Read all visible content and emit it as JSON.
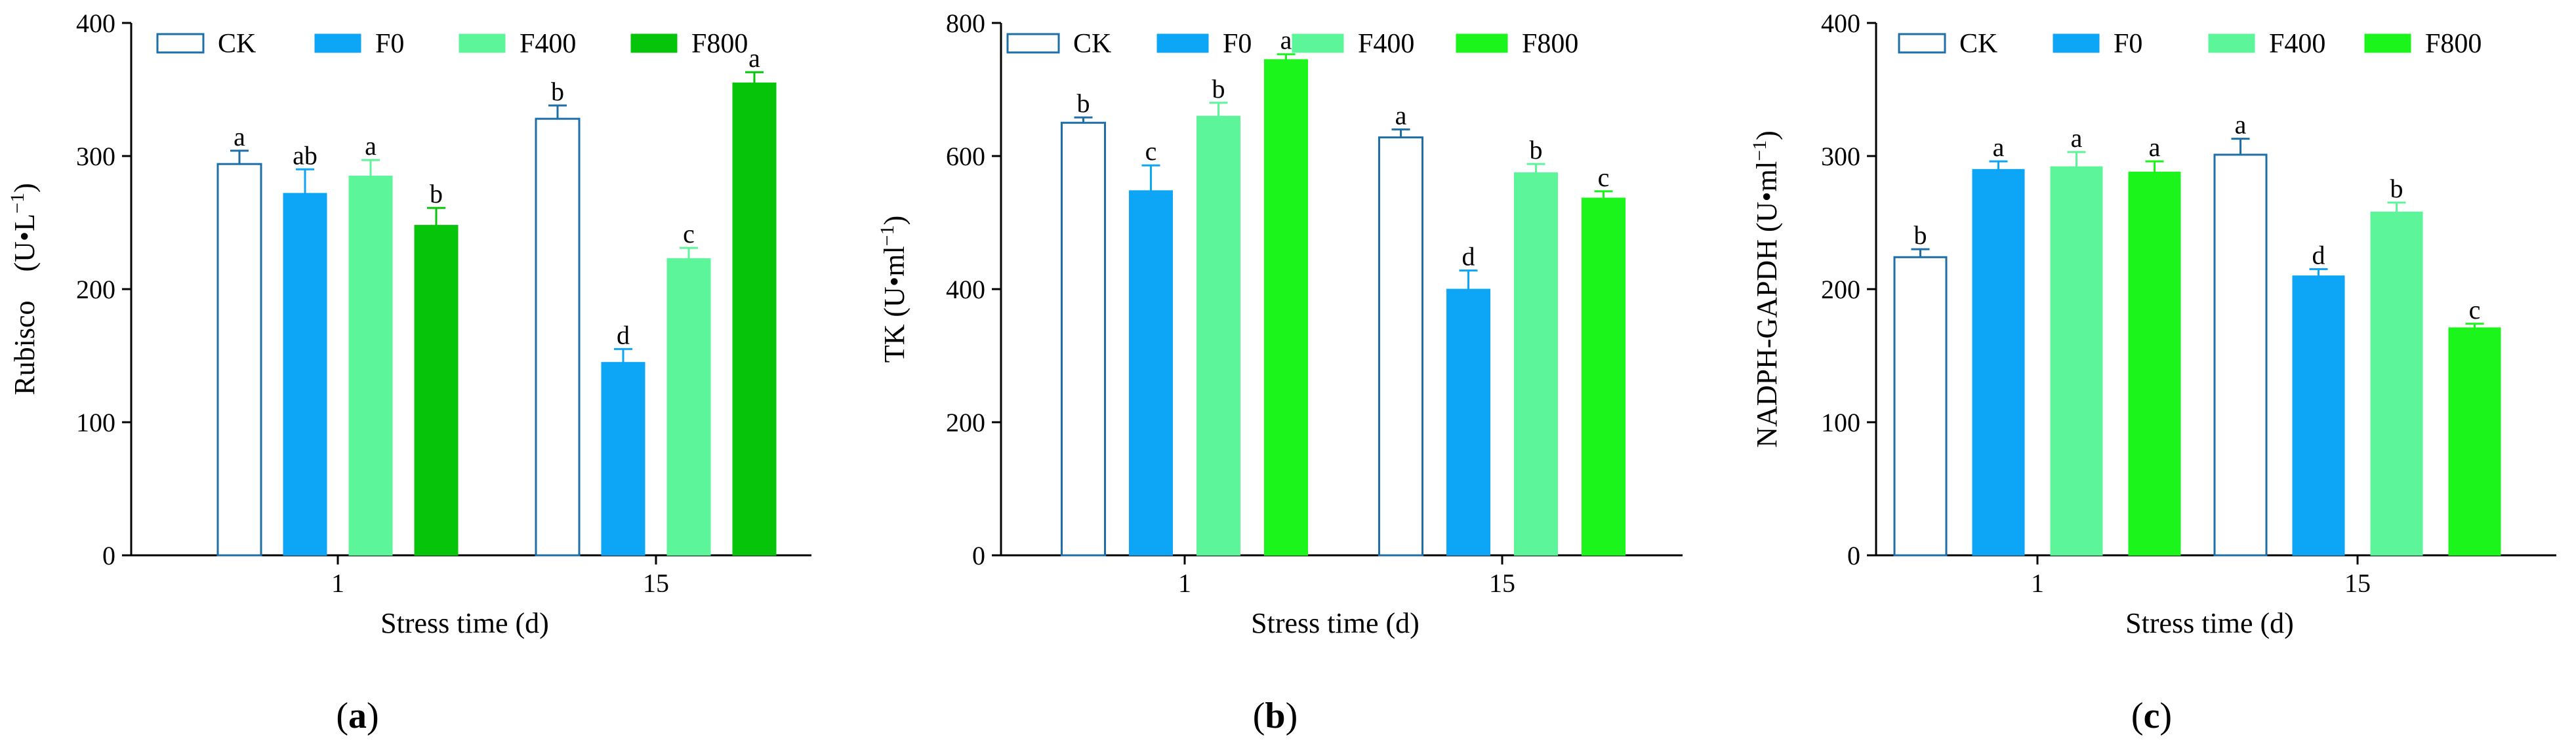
{
  "colors": {
    "CK": "#ffffff",
    "CK_stroke": "#1e6fa8",
    "F0": "#0da5f5",
    "F400": "#5df59a",
    "F800_a": "#06c40a",
    "F800": "#1bf51b",
    "axis": "#000000"
  },
  "chart_data": [
    {
      "type": "bar",
      "panel_label": "(a)",
      "ylabel_main": "Rubisco　(U•L",
      "ylabel_sup": "−1",
      "ylabel_end": ")",
      "xlabel": "Stress time (d)",
      "categories": [
        "1",
        "15"
      ],
      "ylim": [
        0,
        400
      ],
      "yticks": [
        "0",
        "100",
        "200",
        "300",
        "400"
      ],
      "series": [
        {
          "name": "CK",
          "values": [
            294,
            328
          ],
          "errors": [
            10,
            10
          ],
          "letters": [
            "a",
            "b"
          ]
        },
        {
          "name": "F0",
          "values": [
            272,
            145
          ],
          "errors": [
            18,
            10
          ],
          "letters": [
            "ab",
            "d"
          ]
        },
        {
          "name": "F400",
          "values": [
            285,
            223
          ],
          "errors": [
            12,
            8
          ],
          "letters": [
            "a",
            "c"
          ]
        },
        {
          "name": "F800",
          "values": [
            248,
            355
          ],
          "errors": [
            13,
            8
          ],
          "letters": [
            "b",
            "a"
          ]
        }
      ]
    },
    {
      "type": "bar",
      "panel_label": "(b)",
      "ylabel_main": "TK (U•ml",
      "ylabel_sup": "−1",
      "ylabel_end": ")",
      "xlabel": "Stress time (d)",
      "categories": [
        "1",
        "15"
      ],
      "ylim": [
        0,
        800
      ],
      "yticks": [
        "0",
        "200",
        "400",
        "600",
        "800"
      ],
      "series": [
        {
          "name": "CK",
          "values": [
            650,
            628
          ],
          "errors": [
            8,
            12
          ],
          "letters": [
            "b",
            "a"
          ]
        },
        {
          "name": "F0",
          "values": [
            548,
            400
          ],
          "errors": [
            38,
            28
          ],
          "letters": [
            "c",
            "d"
          ]
        },
        {
          "name": "F400",
          "values": [
            660,
            575
          ],
          "errors": [
            20,
            13
          ],
          "letters": [
            "b",
            "b"
          ]
        },
        {
          "name": "F800",
          "values": [
            745,
            537
          ],
          "errors": [
            8,
            10
          ],
          "letters": [
            "a",
            "c"
          ]
        }
      ]
    },
    {
      "type": "bar",
      "panel_label": "(c)",
      "ylabel_main": "NADPH-GAPDH (U•ml",
      "ylabel_sup": "−1",
      "ylabel_end": ")",
      "xlabel": "Stress time (d)",
      "categories": [
        "1",
        "15"
      ],
      "ylim": [
        0,
        400
      ],
      "yticks": [
        "0",
        "100",
        "200",
        "300",
        "400"
      ],
      "series": [
        {
          "name": "CK",
          "values": [
            224,
            301
          ],
          "errors": [
            6,
            12
          ],
          "letters": [
            "b",
            "a"
          ]
        },
        {
          "name": "F0",
          "values": [
            290,
            210
          ],
          "errors": [
            6,
            5
          ],
          "letters": [
            "a",
            "d"
          ]
        },
        {
          "name": "F400",
          "values": [
            292,
            258
          ],
          "errors": [
            11,
            7
          ],
          "letters": [
            "a",
            "b"
          ]
        },
        {
          "name": "F800",
          "values": [
            288,
            171
          ],
          "errors": [
            8,
            3
          ],
          "letters": [
            "a",
            "c"
          ]
        }
      ]
    }
  ]
}
